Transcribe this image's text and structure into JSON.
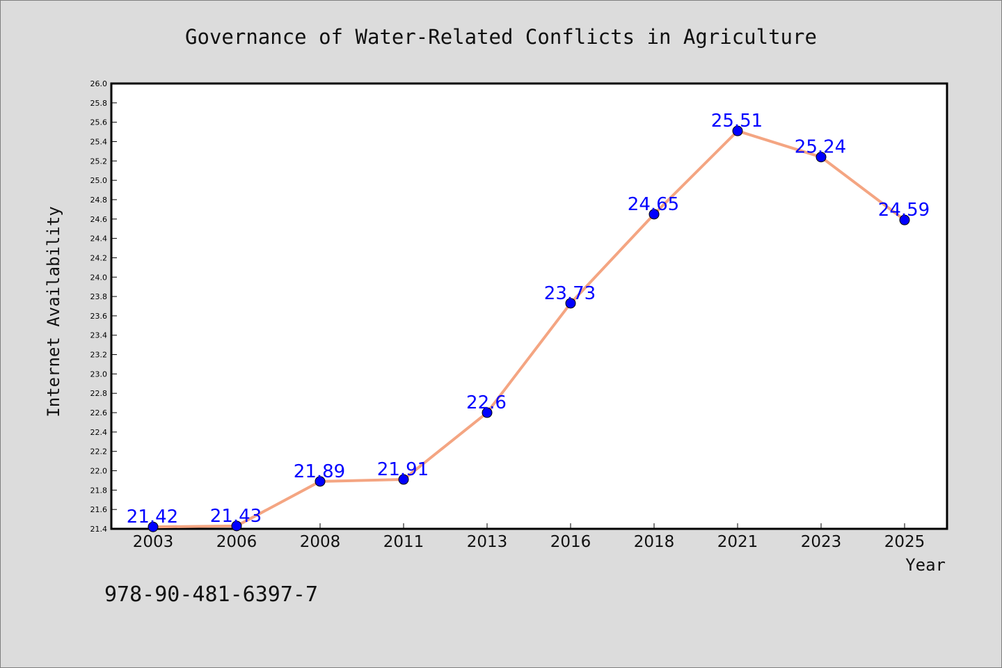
{
  "chart_data": {
    "type": "line",
    "title": "Governance of Water-Related Conflicts in Agriculture",
    "xlabel": "Year",
    "ylabel": "Internet Availability",
    "categories": [
      "2003",
      "2006",
      "2008",
      "2011",
      "2013",
      "2016",
      "2018",
      "2021",
      "2023",
      "2025"
    ],
    "values": [
      21.42,
      21.43,
      21.89,
      21.91,
      22.6,
      23.73,
      24.65,
      25.51,
      25.24,
      24.59
    ],
    "data_labels": [
      "21.42",
      "21.43",
      "21.89",
      "21.91",
      "22.6",
      "23.73",
      "24.65",
      "25.51",
      "25.24",
      "24.59"
    ],
    "ylim": [
      21.4,
      26.0
    ],
    "yticks": [
      "21.4",
      "21.6",
      "21.8",
      "22.0",
      "22.2",
      "22.4",
      "22.6",
      "22.8",
      "23.0",
      "23.2",
      "23.4",
      "23.6",
      "23.8",
      "24.0",
      "24.2",
      "24.4",
      "24.6",
      "24.8",
      "25.0",
      "25.2",
      "25.4",
      "25.6",
      "25.8",
      "26.0"
    ],
    "grid": false,
    "line_color": "#f4a582",
    "marker_color": "#0000ff",
    "label_color": "#0000ff"
  },
  "annotation": {
    "isbn": "978-90-481-6397-7"
  }
}
